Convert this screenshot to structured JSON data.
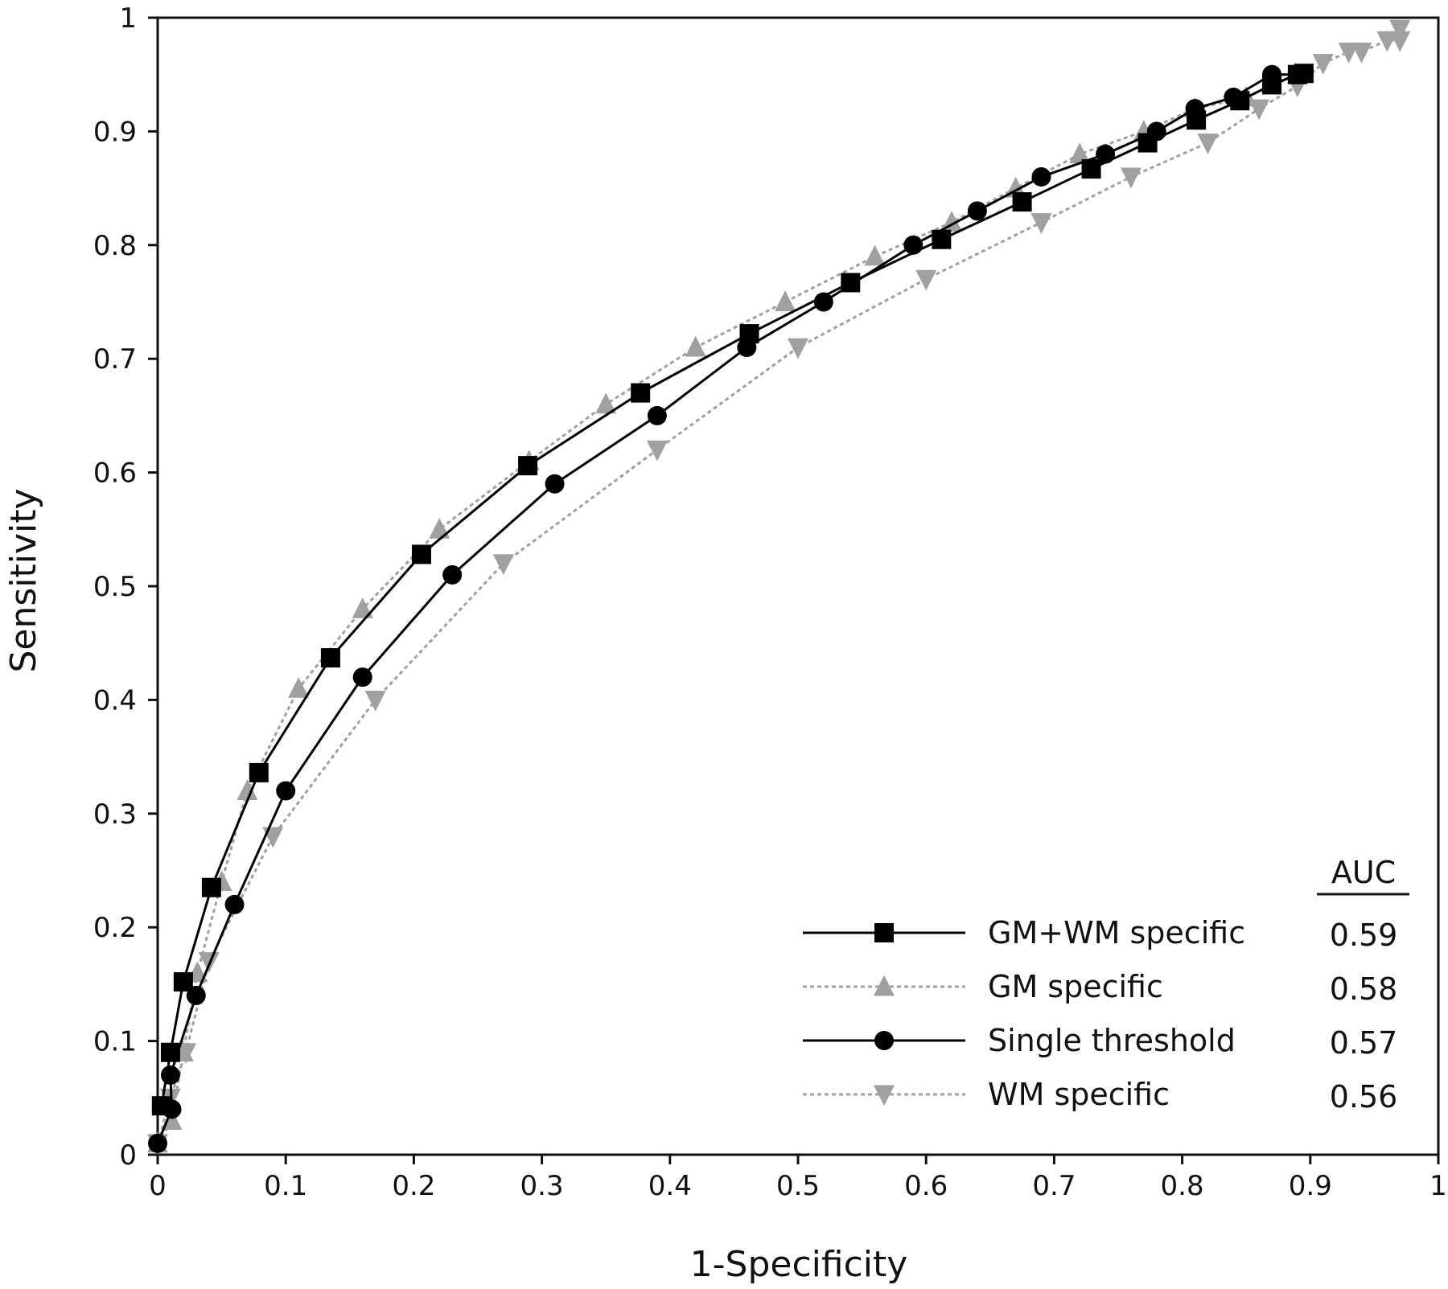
{
  "chart_data": {
    "type": "line",
    "title": "",
    "xlabel": "1-Specificity",
    "ylabel": "Sensitivity",
    "xlim": [
      0,
      1
    ],
    "ylim": [
      0,
      1
    ],
    "xticks": [
      "0",
      "0.1",
      "0.2",
      "0.3",
      "0.4",
      "0.5",
      "0.6",
      "0.7",
      "0.8",
      "0.9",
      "1"
    ],
    "yticks": [
      "0",
      "0.1",
      "0.2",
      "0.3",
      "0.4",
      "0.5",
      "0.6",
      "0.7",
      "0.8",
      "0.9",
      "1"
    ],
    "grid": false,
    "legend_position": "bottom-right",
    "auc_header": "AUC",
    "series": [
      {
        "name": "GM+WM specific",
        "auc": "0.59",
        "marker": "square",
        "line_style": "solid",
        "color": "#000000",
        "points": [
          [
            0.003,
            0.043
          ],
          [
            0.01,
            0.09
          ],
          [
            0.02,
            0.152
          ],
          [
            0.042,
            0.235
          ],
          [
            0.079,
            0.336
          ],
          [
            0.135,
            0.437
          ],
          [
            0.206,
            0.528
          ],
          [
            0.289,
            0.606
          ],
          [
            0.377,
            0.67
          ],
          [
            0.462,
            0.722
          ],
          [
            0.541,
            0.767
          ],
          [
            0.612,
            0.805
          ],
          [
            0.675,
            0.838
          ],
          [
            0.729,
            0.867
          ],
          [
            0.773,
            0.89
          ],
          [
            0.811,
            0.91
          ],
          [
            0.845,
            0.927
          ],
          [
            0.87,
            0.941
          ],
          [
            0.89,
            0.95
          ],
          [
            0.895,
            0.951
          ]
        ]
      },
      {
        "name": "GM specific",
        "auc": "0.58",
        "marker": "triangle-up",
        "line_style": "dashed",
        "color": "#a0a0a0",
        "points": [
          [
            0.0,
            0.01
          ],
          [
            0.011,
            0.03
          ],
          [
            0.02,
            0.09
          ],
          [
            0.031,
            0.16
          ],
          [
            0.05,
            0.24
          ],
          [
            0.07,
            0.32
          ],
          [
            0.11,
            0.41
          ],
          [
            0.16,
            0.48
          ],
          [
            0.22,
            0.55
          ],
          [
            0.29,
            0.61
          ],
          [
            0.35,
            0.66
          ],
          [
            0.42,
            0.71
          ],
          [
            0.49,
            0.75
          ],
          [
            0.56,
            0.79
          ],
          [
            0.62,
            0.82
          ],
          [
            0.67,
            0.85
          ],
          [
            0.72,
            0.88
          ],
          [
            0.77,
            0.9
          ],
          [
            0.81,
            0.92
          ],
          [
            0.85,
            0.93
          ],
          [
            0.89,
            0.95
          ]
        ]
      },
      {
        "name": "Single threshold",
        "auc": "0.57",
        "marker": "circle",
        "line_style": "solid",
        "color": "#000000",
        "points": [
          [
            0.0,
            0.01
          ],
          [
            0.011,
            0.04
          ],
          [
            0.01,
            0.07
          ],
          [
            0.03,
            0.14
          ],
          [
            0.06,
            0.22
          ],
          [
            0.1,
            0.32
          ],
          [
            0.16,
            0.42
          ],
          [
            0.23,
            0.51
          ],
          [
            0.31,
            0.59
          ],
          [
            0.39,
            0.65
          ],
          [
            0.46,
            0.71
          ],
          [
            0.52,
            0.75
          ],
          [
            0.59,
            0.8
          ],
          [
            0.64,
            0.83
          ],
          [
            0.69,
            0.86
          ],
          [
            0.74,
            0.88
          ],
          [
            0.78,
            0.9
          ],
          [
            0.81,
            0.92
          ],
          [
            0.84,
            0.93
          ],
          [
            0.87,
            0.95
          ],
          [
            0.89,
            0.95
          ]
        ]
      },
      {
        "name": "WM specific",
        "auc": "0.56",
        "marker": "triangle-down",
        "line_style": "dashed",
        "color": "#a0a0a0",
        "points": [
          [
            0.0,
            0.01
          ],
          [
            0.01,
            0.05
          ],
          [
            0.022,
            0.09
          ],
          [
            0.04,
            0.17
          ],
          [
            0.09,
            0.28
          ],
          [
            0.17,
            0.4
          ],
          [
            0.27,
            0.52
          ],
          [
            0.39,
            0.62
          ],
          [
            0.5,
            0.71
          ],
          [
            0.6,
            0.77
          ],
          [
            0.69,
            0.82
          ],
          [
            0.76,
            0.86
          ],
          [
            0.82,
            0.89
          ],
          [
            0.86,
            0.92
          ],
          [
            0.89,
            0.94
          ],
          [
            0.91,
            0.96
          ],
          [
            0.93,
            0.97
          ],
          [
            0.94,
            0.97
          ],
          [
            0.96,
            0.98
          ],
          [
            0.97,
            0.98
          ],
          [
            0.97,
            0.99
          ]
        ]
      }
    ]
  }
}
